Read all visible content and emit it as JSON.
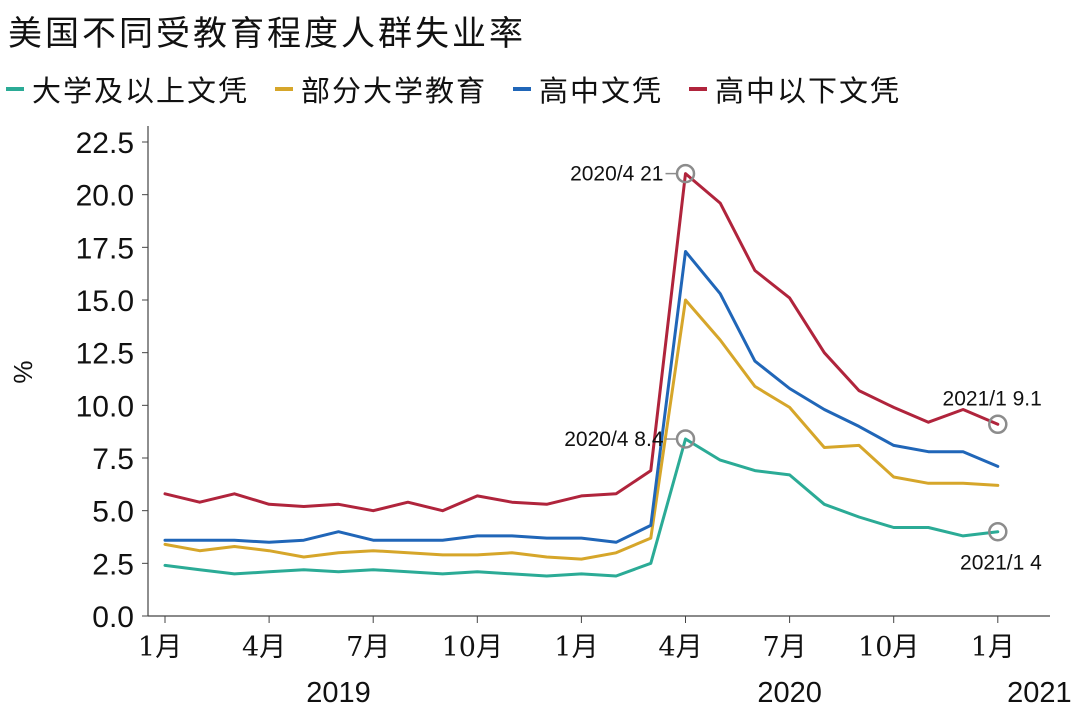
{
  "title": "美国不同受教育程度人群失业率",
  "legend": [
    {
      "label": "大学及以上文凭",
      "color": "#2bab96"
    },
    {
      "label": "部分大学教育",
      "color": "#d6a62a"
    },
    {
      "label": "高中文凭",
      "color": "#2066b8"
    },
    {
      "label": "高中以下文凭",
      "color": "#b0243c"
    }
  ],
  "chart_data": {
    "type": "line",
    "ylabel": "%",
    "ylim": [
      0,
      22.5
    ],
    "yticks": [
      "0.0",
      "2.5",
      "5.0",
      "7.5",
      "10.0",
      "12.5",
      "15.0",
      "17.5",
      "20.0",
      "22.5"
    ],
    "x": [
      "2019-01",
      "2019-02",
      "2019-03",
      "2019-04",
      "2019-05",
      "2019-06",
      "2019-07",
      "2019-08",
      "2019-09",
      "2019-10",
      "2019-11",
      "2019-12",
      "2020-01",
      "2020-02",
      "2020-03",
      "2020-04",
      "2020-05",
      "2020-06",
      "2020-07",
      "2020-08",
      "2020-09",
      "2020-10",
      "2020-11",
      "2020-12",
      "2021-01"
    ],
    "xtick_labels": [
      {
        "index": 0,
        "label": "1月"
      },
      {
        "index": 3,
        "label": "4月"
      },
      {
        "index": 6,
        "label": "7月"
      },
      {
        "index": 9,
        "label": "10月"
      },
      {
        "index": 12,
        "label": "1月"
      },
      {
        "index": 15,
        "label": "4月"
      },
      {
        "index": 18,
        "label": "7月"
      },
      {
        "index": 21,
        "label": "10月"
      },
      {
        "index": 24,
        "label": "1月"
      }
    ],
    "year_labels": [
      {
        "index": 5,
        "label": "2019"
      },
      {
        "index": 18,
        "label": "2020"
      },
      {
        "index": 25.2,
        "label": "2021"
      }
    ],
    "series": [
      {
        "name": "大学及以上文凭",
        "color": "#2bab96",
        "values": [
          2.4,
          2.2,
          2.0,
          2.1,
          2.2,
          2.1,
          2.2,
          2.1,
          2.0,
          2.1,
          2.0,
          1.9,
          2.0,
          1.9,
          2.5,
          8.4,
          7.4,
          6.9,
          6.7,
          5.3,
          4.7,
          4.2,
          4.2,
          3.8,
          4.0
        ]
      },
      {
        "name": "部分大学教育",
        "color": "#d6a62a",
        "values": [
          3.4,
          3.1,
          3.3,
          3.1,
          2.8,
          3.0,
          3.1,
          3.0,
          2.9,
          2.9,
          3.0,
          2.8,
          2.7,
          3.0,
          3.7,
          15.0,
          13.1,
          10.9,
          9.9,
          8.0,
          8.1,
          6.6,
          6.3,
          6.3,
          6.2
        ]
      },
      {
        "name": "高中文凭",
        "color": "#2066b8",
        "values": [
          3.6,
          3.6,
          3.6,
          3.5,
          3.6,
          4.0,
          3.6,
          3.6,
          3.6,
          3.8,
          3.8,
          3.7,
          3.7,
          3.5,
          4.3,
          17.3,
          15.3,
          12.1,
          10.8,
          9.8,
          9.0,
          8.1,
          7.8,
          7.8,
          7.1
        ]
      },
      {
        "name": "高中以下文凭",
        "color": "#b0243c",
        "values": [
          5.8,
          5.4,
          5.8,
          5.3,
          5.2,
          5.3,
          5.0,
          5.4,
          5.0,
          5.7,
          5.4,
          5.3,
          5.7,
          5.8,
          6.9,
          21.0,
          19.6,
          16.4,
          15.1,
          12.5,
          10.7,
          9.9,
          9.2,
          9.8,
          9.1
        ]
      }
    ],
    "annotations": [
      {
        "series": 3,
        "index": 15,
        "text": "2020/4 21",
        "position": "left"
      },
      {
        "series": 0,
        "index": 15,
        "text": "2020/4 8.4",
        "position": "left"
      },
      {
        "series": 3,
        "index": 24,
        "text": "2021/1 9.1",
        "position": "above"
      },
      {
        "series": 0,
        "index": 24,
        "text": "2021/1 4",
        "position": "below"
      }
    ]
  }
}
